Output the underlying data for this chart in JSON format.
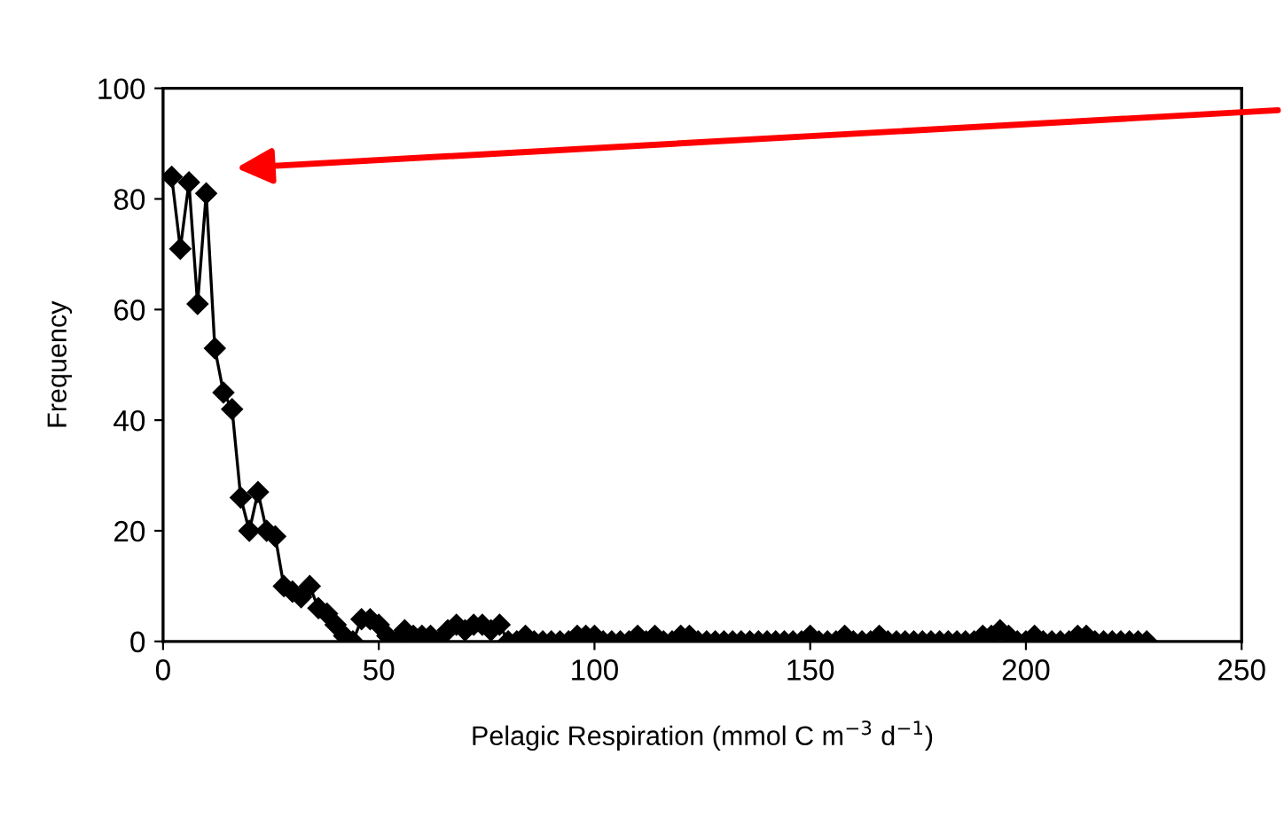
{
  "chart_data": {
    "type": "line",
    "xlabel": "Pelagic Respiration (mmol C m$^{−3}$ d$^{−1}$)",
    "ylabel": "Frequency",
    "x": [
      2,
      4,
      6,
      8,
      10,
      12,
      14,
      16,
      18,
      20,
      22,
      24,
      26,
      28,
      30,
      32,
      34,
      36,
      38,
      40,
      42,
      44,
      46,
      48,
      50,
      52,
      54,
      56,
      58,
      60,
      62,
      64,
      66,
      68,
      70,
      72,
      74,
      76,
      78,
      80,
      82,
      84,
      86,
      88,
      90,
      92,
      94,
      96,
      98,
      100,
      102,
      104,
      106,
      108,
      110,
      112,
      114,
      116,
      118,
      120,
      122,
      124,
      126,
      128,
      130,
      132,
      134,
      136,
      138,
      140,
      142,
      144,
      146,
      148,
      150,
      152,
      154,
      156,
      158,
      160,
      162,
      164,
      166,
      168,
      170,
      172,
      174,
      176,
      178,
      180,
      182,
      184,
      186,
      188,
      190,
      192,
      194,
      196,
      198,
      200,
      202,
      204,
      206,
      208,
      210,
      212,
      214,
      216,
      218,
      220,
      222,
      224,
      226,
      228
    ],
    "series": [
      {
        "color": "#000000",
        "values": [
          84,
          71,
          83,
          61,
          81,
          53,
          45,
          42,
          26,
          20,
          27,
          20,
          19,
          10,
          9,
          8,
          10,
          6,
          5,
          3,
          1,
          0,
          4,
          4,
          3,
          1,
          0,
          2,
          1,
          1,
          1,
          0,
          2,
          3,
          2,
          3,
          3,
          2,
          3,
          0,
          0,
          1,
          0,
          0,
          0,
          0,
          0,
          1,
          1,
          1,
          0,
          0,
          0,
          0,
          1,
          0,
          1,
          0,
          0,
          1,
          1,
          0,
          0,
          0,
          0,
          0,
          0,
          0,
          0,
          0,
          0,
          0,
          0,
          0,
          1,
          0,
          0,
          0,
          1,
          0,
          0,
          0,
          1,
          0,
          0,
          0,
          0,
          0,
          0,
          0,
          0,
          0,
          0,
          0,
          1,
          1,
          2,
          1,
          0,
          0,
          1,
          0,
          0,
          0,
          0,
          1,
          1,
          0,
          0,
          0,
          0,
          0,
          0,
          0
        ]
      }
    ],
    "xlim": [
      0,
      250
    ],
    "ylim": [
      0,
      100
    ],
    "xticks": [
      0,
      50,
      100,
      150,
      200,
      250
    ],
    "yticks": [
      0,
      20,
      40,
      60,
      80,
      100
    ],
    "marker": "diamond",
    "line_style": "solid",
    "grid": false,
    "legend": false
  }
}
